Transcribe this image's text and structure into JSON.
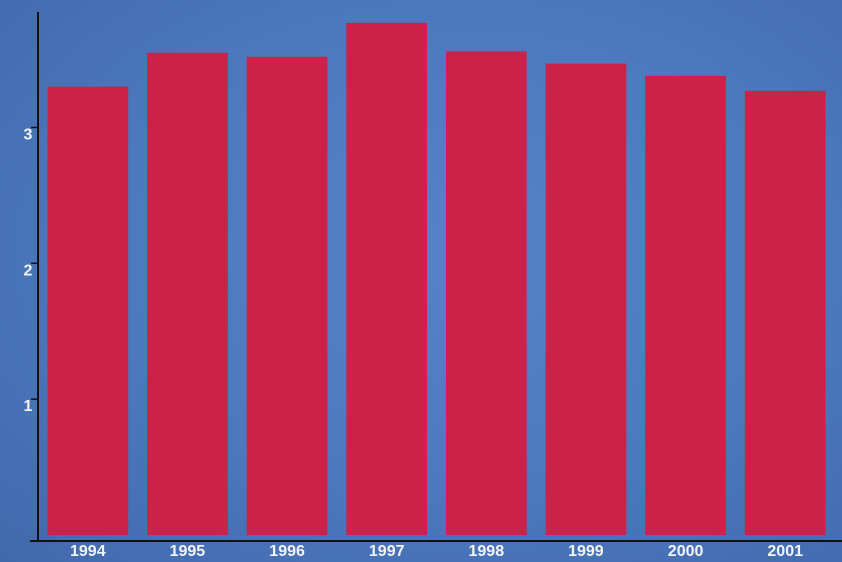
{
  "chart_data": {
    "type": "bar",
    "categories": [
      "1994",
      "1995",
      "1996",
      "1997",
      "1998",
      "1999",
      "2000",
      "2001"
    ],
    "values": [
      3.3,
      3.55,
      3.52,
      3.77,
      3.56,
      3.47,
      3.38,
      3.27
    ],
    "title": "",
    "xlabel": "",
    "ylabel": "",
    "ylim": [
      0,
      3.85
    ],
    "yticks": [
      "1",
      "2",
      "3"
    ],
    "grid": false,
    "legend": "none",
    "colors": {
      "bar": "#cc2148",
      "background": "#4c78bd",
      "axis": "#111111",
      "label": "#f4f4f4"
    }
  }
}
